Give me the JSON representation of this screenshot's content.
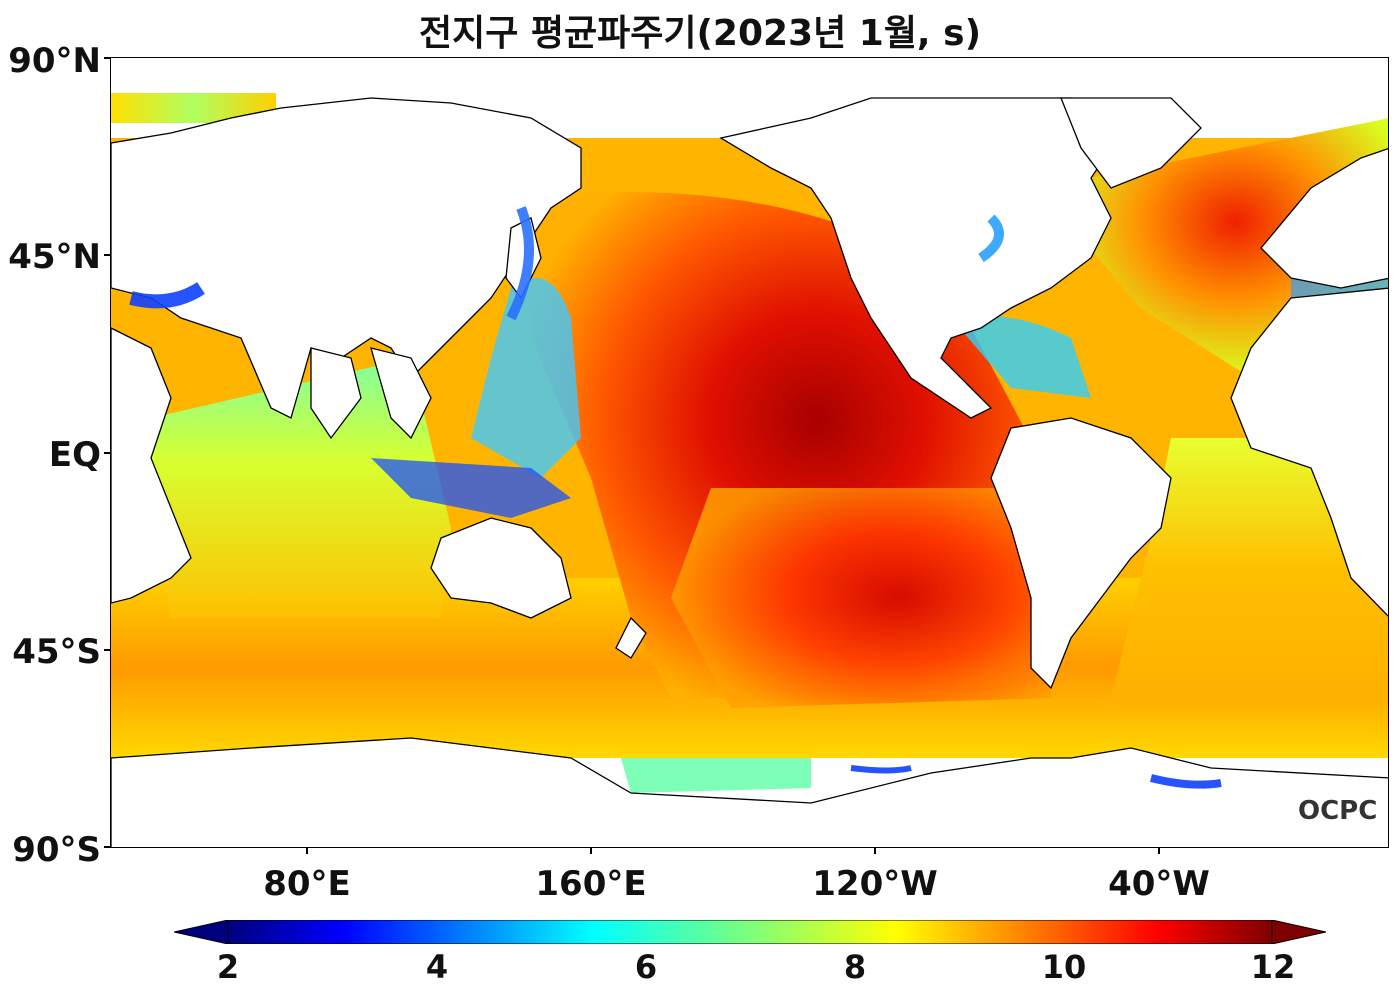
{
  "title": "전지구 평균파주기(2023년 1월, s)",
  "y_axis": {
    "ticks": [
      "90°N",
      "45°N",
      "EQ",
      "45°S",
      "90°S"
    ]
  },
  "x_axis": {
    "ticks": [
      "80°E",
      "160°E",
      "120°W",
      "40°W"
    ]
  },
  "colorbar": {
    "ticks": [
      "2",
      "4",
      "6",
      "8",
      "10",
      "12"
    ],
    "range": [
      2,
      12
    ],
    "colormap": "jet",
    "extend": "both"
  },
  "logo": "OCPC",
  "colors": {
    "land": "#ffffff",
    "coast": "#000000",
    "short_period": "#1a3cff",
    "mid_period": "#7dffb8",
    "long_period": "#d40000"
  }
}
